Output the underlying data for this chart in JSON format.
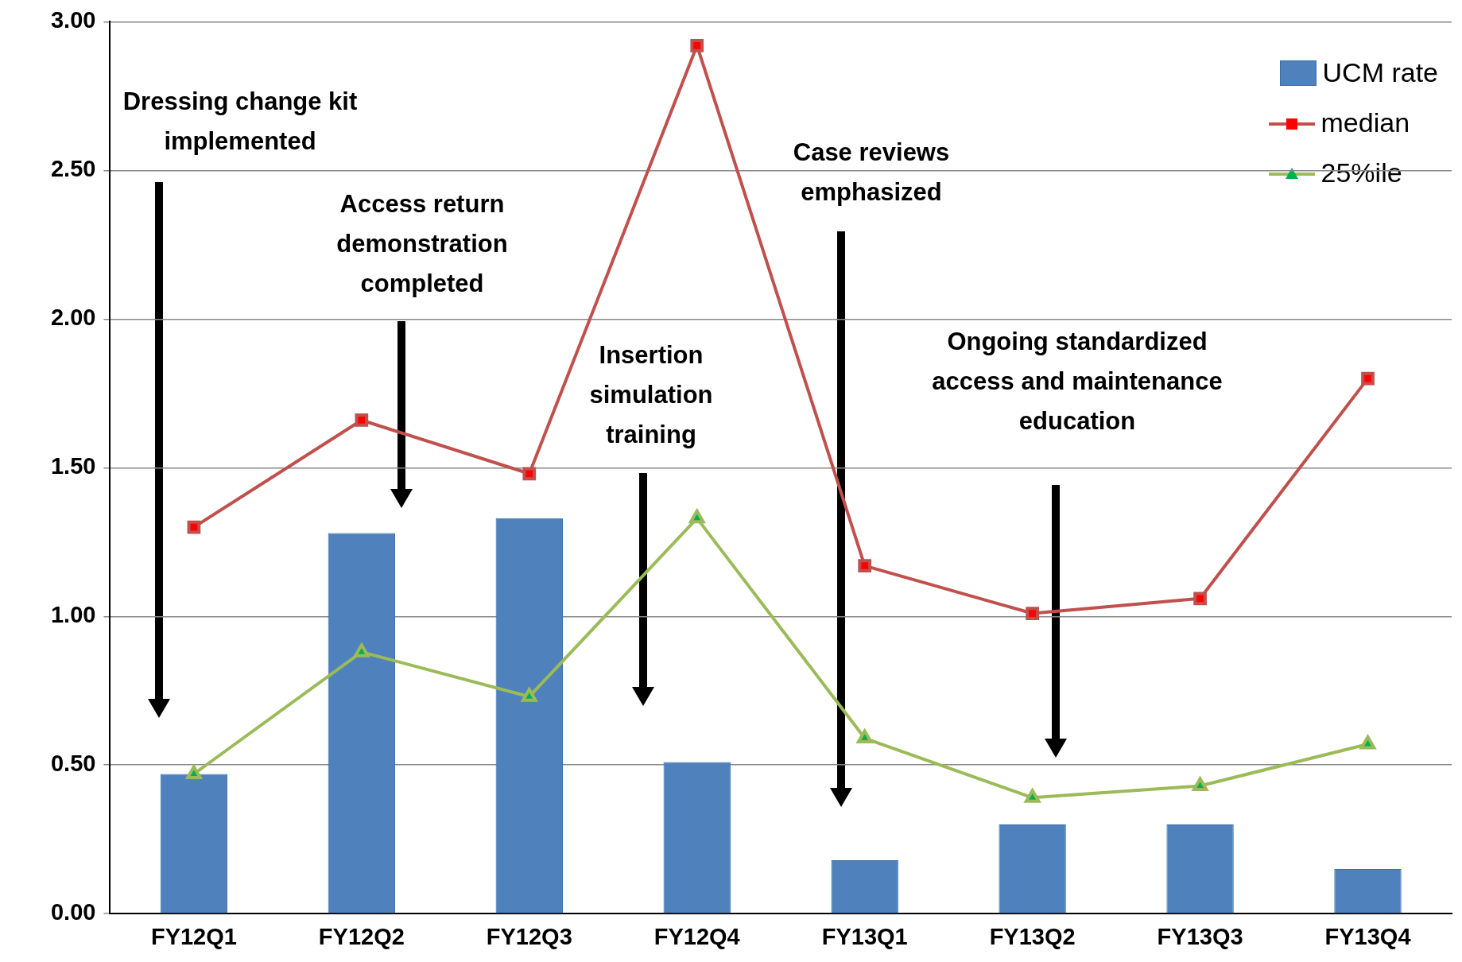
{
  "chart_data": {
    "type": "bar",
    "categories": [
      "FY12Q1",
      "FY12Q2",
      "FY12Q3",
      "FY12Q4",
      "FY13Q1",
      "FY13Q2",
      "FY13Q3",
      "FY13Q4"
    ],
    "series": [
      {
        "name": "UCM rate",
        "color": "#4f81bd",
        "values": [
          0.47,
          1.28,
          1.33,
          0.51,
          0.18,
          0.3,
          0.3,
          0.15
        ]
      },
      {
        "name": "median",
        "type": "line",
        "color": "#c0504d",
        "marker": "square",
        "values": [
          1.3,
          1.66,
          1.48,
          2.92,
          1.17,
          1.01,
          1.06,
          1.8
        ]
      },
      {
        "name": "25%ile",
        "type": "line",
        "color": "#9bbb59",
        "marker": "triangle",
        "values": [
          0.47,
          0.88,
          0.73,
          1.33,
          0.59,
          0.39,
          0.43,
          0.57
        ]
      }
    ],
    "ylim": [
      0,
      3
    ],
    "yticks": [
      {
        "value": 0,
        "label": "0.00"
      },
      {
        "value": 0.5,
        "label": "0.50"
      },
      {
        "value": 1,
        "label": "1.00"
      },
      {
        "value": 1.5,
        "label": "1.50"
      },
      {
        "value": 2,
        "label": "2.00"
      },
      {
        "value": 2.5,
        "label": "2.50"
      },
      {
        "value": 3,
        "label": "3.00"
      }
    ],
    "grid": "y",
    "legend": "top right",
    "annotations": [
      "Dressing  change kit implemented",
      "Access return demonstration completed",
      "Insertion simulation training",
      "Case reviews emphasized",
      "Ongoing standardized access and maintenance education"
    ]
  }
}
